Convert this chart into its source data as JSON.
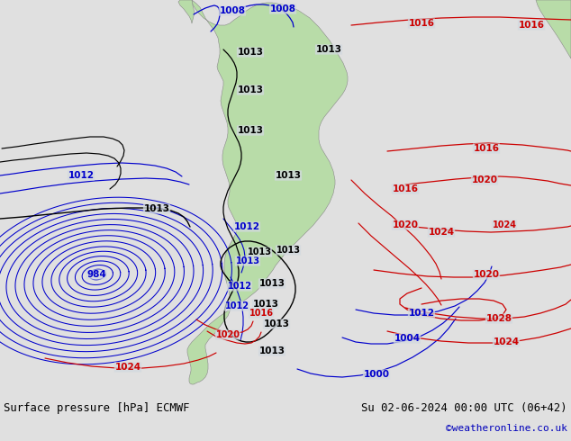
{
  "title_left": "Surface pressure [hPa] ECMWF",
  "title_right": "Su 02-06-2024 00:00 UTC (06+42)",
  "copyright": "©weatheronline.co.uk",
  "bg_ocean": "#d2d9df",
  "bg_land": "#b8dca8",
  "bg_land_alt": "#c8e8b8",
  "bg_bottom": "#e0e0e0",
  "color_black": "#000000",
  "color_blue": "#0000cc",
  "color_red": "#cc0000",
  "color_land_border": "#888888",
  "copyright_color": "#0000bb",
  "fig_width": 6.34,
  "fig_height": 4.9,
  "dpi": 100
}
